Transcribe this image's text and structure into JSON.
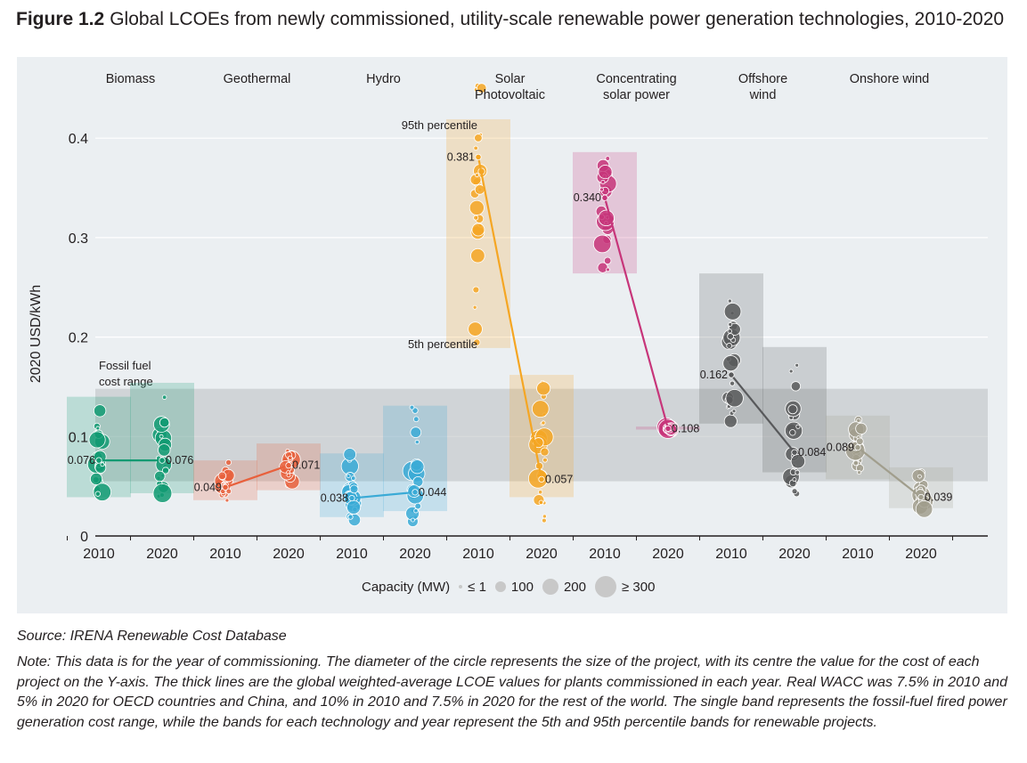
{
  "title": {
    "label": "Figure 1.2",
    "text": "Global LCOEs from newly commissioned, utility-scale renewable power generation technologies, 2010-2020"
  },
  "source": "Source: IRENA Renewable Cost Database",
  "note": "Note: This data is for the year of commissioning. The diameter of the circle represents the size of the project, with its centre the value for the cost of each project on the Y-axis. The thick lines are the global weighted-average LCOE values for plants commissioned in each year. Real WACC was 7.5% in 2010 and 5% in 2020 for OECD countries and China, and 10% in 2010 and 7.5% in 2020 for the rest of the world. The single band represents the fossil-fuel fired power generation cost range, while the bands for each technology and year represent the 5th and 95th percentile bands for renewable projects.",
  "legend": {
    "title": "Capacity (MW)",
    "items": [
      "≤ 1",
      "100",
      "200",
      "≥ 300"
    ]
  },
  "chart_data": {
    "type": "scatter",
    "ylabel": "2020 USD/kWh",
    "ylim": [
      0,
      0.43
    ],
    "yticks": [
      {
        "value": 0,
        "label": "0"
      },
      {
        "value": 0.1,
        "label": "0.1"
      },
      {
        "value": 0.2,
        "label": "0.2"
      },
      {
        "value": 0.3,
        "label": "0.3"
      },
      {
        "value": 0.4,
        "label": "0.4"
      }
    ],
    "fossil_fuel_range": {
      "label": "Fossil fuel cost range",
      "low": 0.055,
      "high": 0.148
    },
    "percentile_labels": {
      "p95": "95th percentile",
      "p5": "5th percentile"
    },
    "technologies": [
      {
        "name": "Biomass",
        "color": "#119a72",
        "years": [
          "2010",
          "2020"
        ],
        "weighted_avg": [
          0.076,
          0.076
        ],
        "labels": [
          "0.076",
          "0.076"
        ],
        "p5": [
          0.039,
          0.043
        ],
        "p95": [
          0.14,
          0.154
        ]
      },
      {
        "name": "Geothermal",
        "color": "#e8603c",
        "years": [
          "2010",
          "2020"
        ],
        "weighted_avg": [
          0.049,
          0.071
        ],
        "labels": [
          "0.049",
          "0.071"
        ],
        "p5": [
          0.036,
          0.046
        ],
        "p95": [
          0.076,
          0.093
        ]
      },
      {
        "name": "Hydro",
        "color": "#3aaad6",
        "years": [
          "2010",
          "2020"
        ],
        "weighted_avg": [
          0.038,
          0.044
        ],
        "labels": [
          "0.038",
          "0.044"
        ],
        "p5": [
          0.019,
          0.025
        ],
        "p95": [
          0.083,
          0.131
        ]
      },
      {
        "name": "Solar Photovoltaic",
        "color": "#f5a623",
        "years": [
          "2010",
          "2020"
        ],
        "weighted_avg": [
          0.381,
          0.057
        ],
        "labels": [
          "0.381",
          "0.057"
        ],
        "p5": [
          0.189,
          0.039
        ],
        "p95": [
          0.419,
          0.162
        ]
      },
      {
        "name": "Concentrating solar power",
        "color": "#c7357a",
        "years": [
          "2010",
          "2020"
        ],
        "weighted_avg": [
          0.34,
          0.108
        ],
        "labels": [
          "0.340",
          "0.108"
        ],
        "p5": [
          0.264,
          0.107
        ],
        "p95": [
          0.386,
          0.11
        ]
      },
      {
        "name": "Offshore wind",
        "color": "#58595b",
        "years": [
          "2010",
          "2020"
        ],
        "weighted_avg": [
          0.162,
          0.084
        ],
        "labels": [
          "0.162",
          "0.084"
        ],
        "p5": [
          0.113,
          0.064
        ],
        "p95": [
          0.264,
          0.19
        ]
      },
      {
        "name": "Onshore wind",
        "color": "#a19e8d",
        "years": [
          "2010",
          "2020"
        ],
        "weighted_avg": [
          0.089,
          0.039
        ],
        "labels": [
          "0.089",
          "0.039"
        ],
        "p5": [
          0.057,
          0.028
        ],
        "p95": [
          0.121,
          0.069
        ]
      }
    ]
  }
}
